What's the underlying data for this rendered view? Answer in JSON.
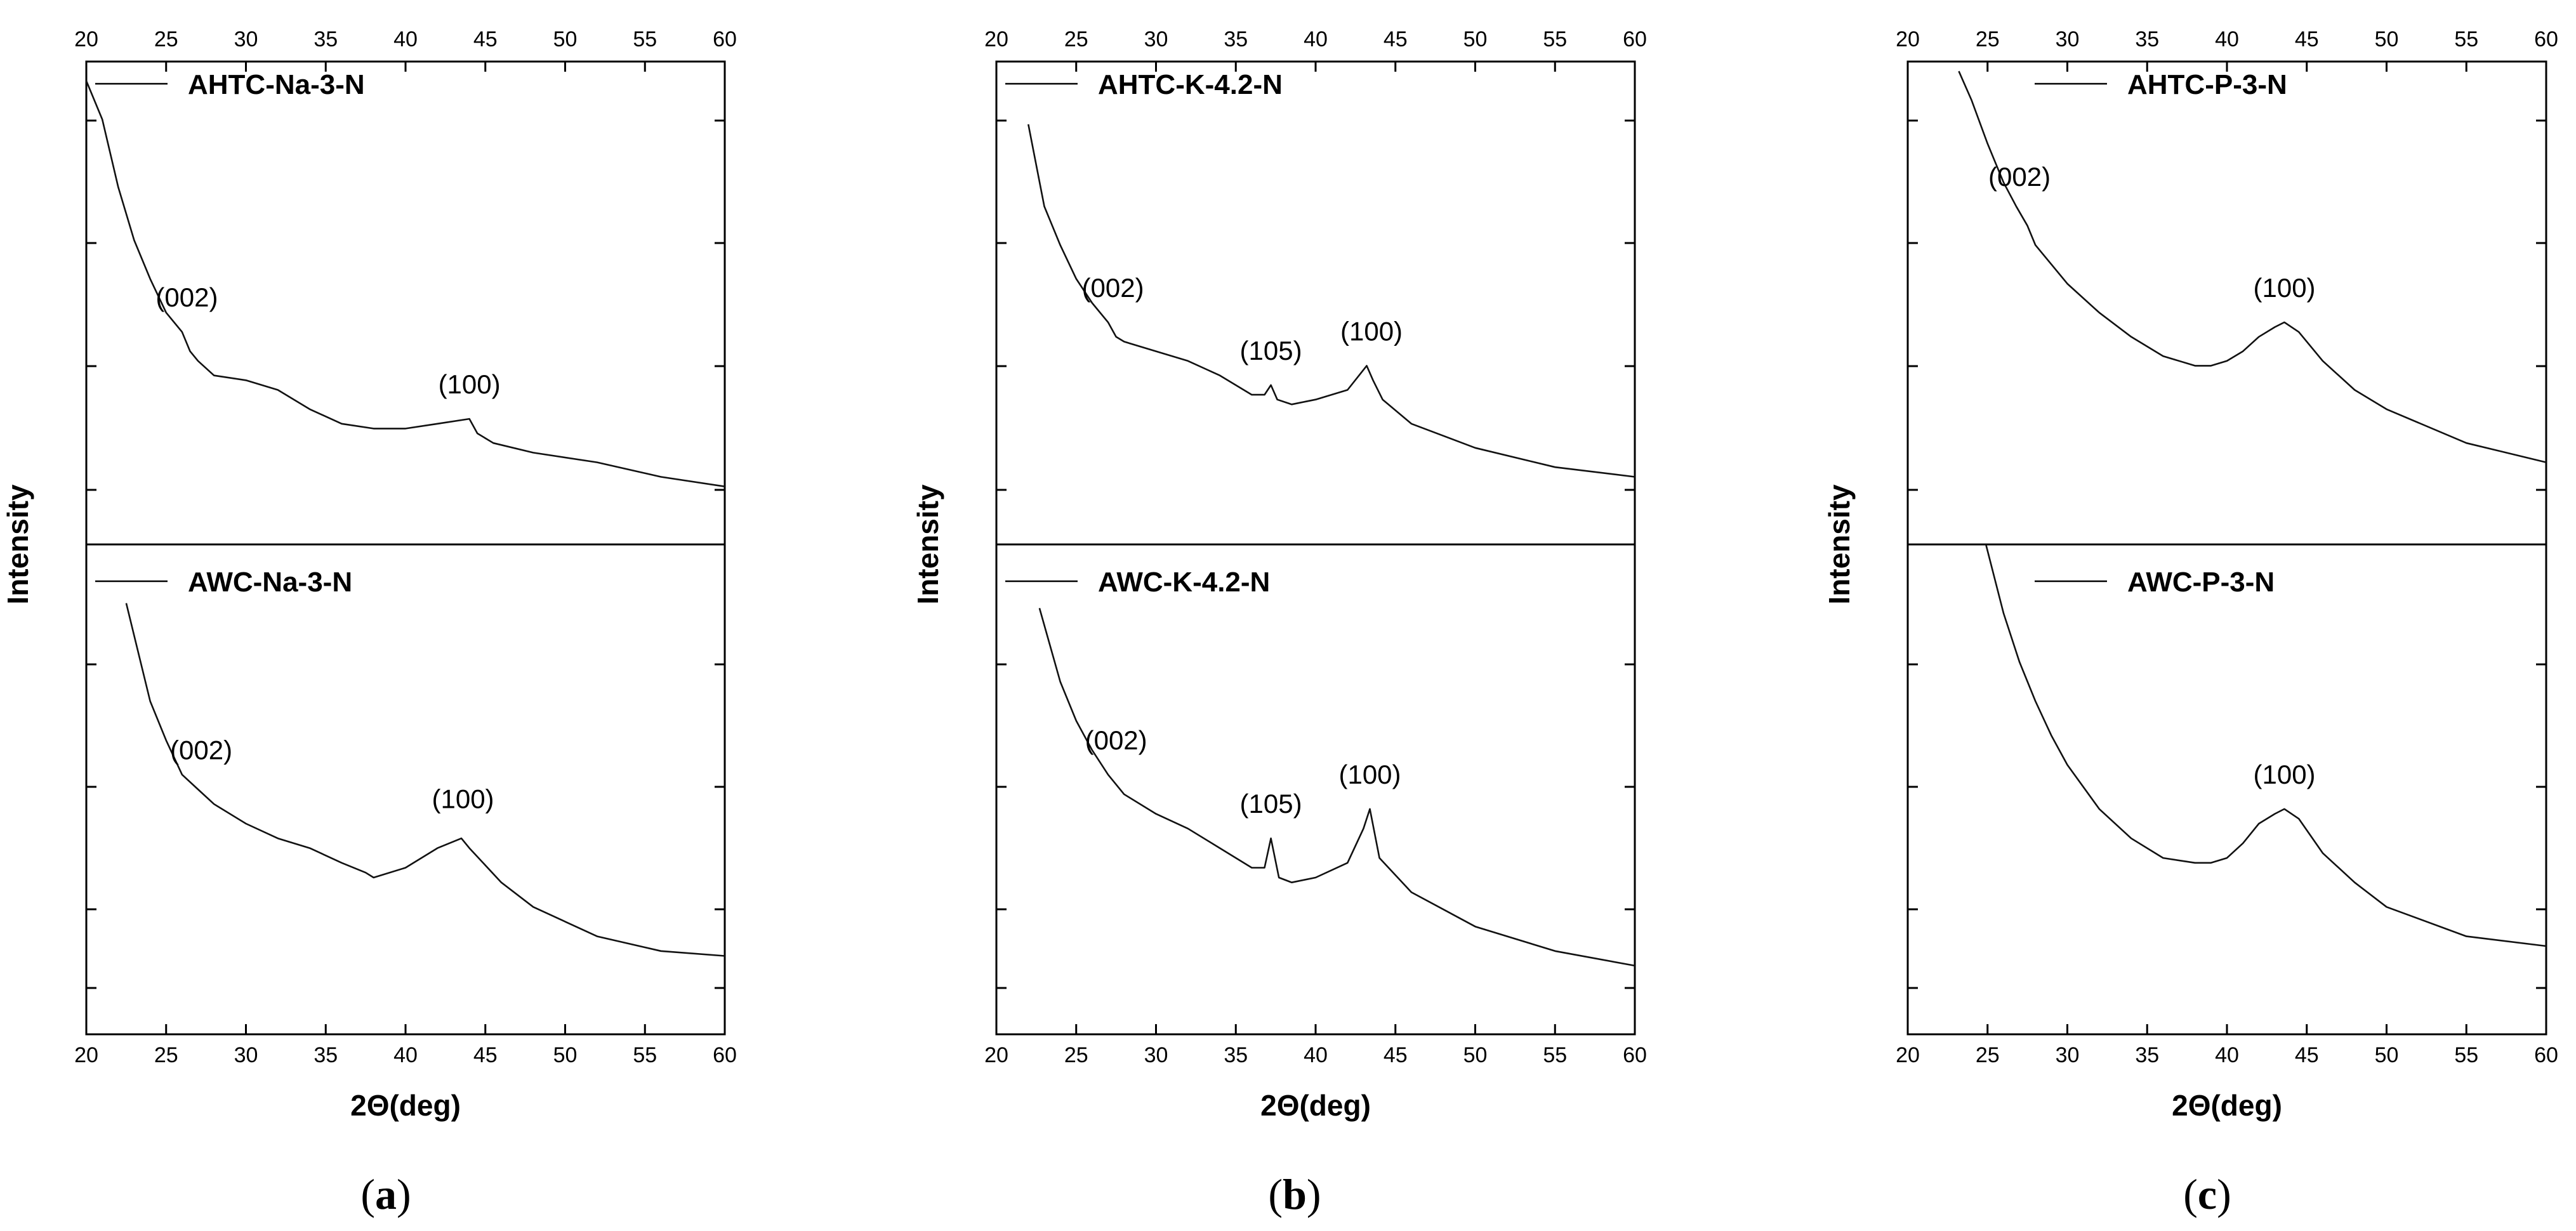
{
  "chart_data": [
    {
      "type": "line",
      "panel": "a",
      "panel_label": {
        "open": "(",
        "letter": "a",
        "close": ")"
      },
      "xlabel": "2Θ(deg)",
      "ylabel": "Intensity",
      "xlim": [
        20,
        60
      ],
      "ylim": [
        0,
        100
      ],
      "x_ticks": [
        "20",
        "25",
        "30",
        "35",
        "40",
        "45",
        "50",
        "55",
        "60"
      ],
      "grid": false,
      "subplots": [
        {
          "position": "top",
          "legend": "AHTC-Na-3-N",
          "series": {
            "name": "AHTC-Na-3-N",
            "x": [
              20.0,
              21.0,
              22.0,
              23.0,
              24.0,
              25.0,
              26.0,
              26.5,
              27.0,
              28.0,
              30.0,
              32.0,
              34.0,
              36.0,
              38.0,
              40.0,
              42.0,
              44.0,
              44.5,
              45.5,
              48.0,
              52.0,
              56.0,
              60.0
            ],
            "y": [
              96,
              88,
              74,
              63,
              55,
              48,
              44,
              40,
              38,
              35,
              34,
              32,
              28,
              25,
              24,
              24,
              25,
              26,
              23,
              21,
              19,
              17,
              14,
              12
            ]
          },
          "peaks": [
            {
              "label": "(002)",
              "x": 26.3,
              "y": 44
            },
            {
              "label": "(100)",
              "x": 44.0,
              "y": 26
            }
          ]
        },
        {
          "position": "bottom",
          "legend": "AWC-Na-3-N",
          "series": {
            "name": "AWC-Na-3-N",
            "x": [
              22.5,
              24.0,
              25.0,
              26.0,
              27.0,
              28.0,
              30.0,
              32.0,
              34.0,
              36.0,
              37.5,
              38.0,
              40.0,
              42.0,
              43.5,
              44.0,
              46.0,
              48.0,
              52.0,
              56.0,
              60.0
            ],
            "y": [
              88,
              68,
              60,
              53,
              50,
              47,
              43,
              40,
              38,
              35,
              33,
              32,
              34,
              38,
              40,
              38,
              31,
              26,
              20,
              17,
              16
            ]
          },
          "peaks": [
            {
              "label": "(002)",
              "x": 27.2,
              "y": 51
            },
            {
              "label": "(100)",
              "x": 43.6,
              "y": 41
            }
          ]
        }
      ]
    },
    {
      "type": "line",
      "panel": "b",
      "panel_label": {
        "open": "(",
        "letter": "b",
        "close": ")"
      },
      "xlabel": "2Θ(deg)",
      "ylabel": "Intensity",
      "xlim": [
        20,
        60
      ],
      "ylim": [
        0,
        100
      ],
      "x_ticks": [
        "20",
        "25",
        "30",
        "35",
        "40",
        "45",
        "50",
        "55",
        "60"
      ],
      "grid": false,
      "subplots": [
        {
          "position": "top",
          "legend": "AHTC-K-4.2-N",
          "series": {
            "name": "AHTC-K-4.2-N",
            "x": [
              22.0,
              23.0,
              24.0,
              25.0,
              26.0,
              27.0,
              27.5,
              28.0,
              30.0,
              32.0,
              34.0,
              36.0,
              36.8,
              37.2,
              37.6,
              38.5,
              40.0,
              42.0,
              43.2,
              43.6,
              44.2,
              46.0,
              50.0,
              55.0,
              60.0
            ],
            "y": [
              87,
              70,
              62,
              55,
              50,
              46,
              43,
              42,
              40,
              38,
              35,
              31,
              31,
              33,
              30,
              29,
              30,
              32,
              37,
              34,
              30,
              25,
              20,
              16,
              14
            ]
          },
          "peaks": [
            {
              "label": "(002)",
              "x": 27.3,
              "y": 46
            },
            {
              "label": "(105)",
              "x": 37.2,
              "y": 33
            },
            {
              "label": "(100)",
              "x": 43.5,
              "y": 37
            }
          ]
        },
        {
          "position": "bottom",
          "legend": "AWC-K-4.2-N",
          "series": {
            "name": "AWC-K-4.2-N",
            "x": [
              22.7,
              24.0,
              25.0,
              26.0,
              27.0,
              28.0,
              30.0,
              32.0,
              34.0,
              36.0,
              36.8,
              37.2,
              37.7,
              38.5,
              40.0,
              42.0,
              43.0,
              43.4,
              44.0,
              46.0,
              50.0,
              55.0,
              60.0
            ],
            "y": [
              87,
              72,
              64,
              58,
              53,
              49,
              45,
              42,
              38,
              34,
              34,
              40,
              32,
              31,
              32,
              35,
              42,
              46,
              36,
              29,
              22,
              17,
              14
            ]
          },
          "peaks": [
            {
              "label": "(002)",
              "x": 27.5,
              "y": 53
            },
            {
              "label": "(105)",
              "x": 37.2,
              "y": 40
            },
            {
              "label": "(100)",
              "x": 43.4,
              "y": 46
            }
          ]
        }
      ]
    },
    {
      "type": "line",
      "panel": "c",
      "panel_label": {
        "open": "(",
        "letter": "c",
        "close": ")"
      },
      "xlabel": "2Θ(deg)",
      "ylabel": "Intensity",
      "xlim": [
        20,
        60
      ],
      "ylim": [
        0,
        100
      ],
      "x_ticks": [
        "20",
        "25",
        "30",
        "35",
        "40",
        "45",
        "50",
        "55",
        "60"
      ],
      "grid": false,
      "subplots": [
        {
          "position": "top",
          "legend": "AHTC-P-3-N",
          "series": {
            "name": "AHTC-P-3-N",
            "x": [
              23.2,
              24.0,
              25.0,
              26.0,
              26.8,
              27.5,
              28.0,
              29.0,
              30.0,
              32.0,
              34.0,
              36.0,
              38.0,
              39.0,
              40.0,
              41.0,
              42.0,
              43.0,
              43.6,
              44.5,
              46.0,
              48.0,
              50.0,
              55.0,
              60.0
            ],
            "y": [
              98,
              92,
              83,
              75,
              70,
              66,
              62,
              58,
              54,
              48,
              43,
              39,
              37,
              37,
              38,
              40,
              43,
              45,
              46,
              44,
              38,
              32,
              28,
              21,
              17
            ]
          },
          "peaks": [
            {
              "label": "(002)",
              "x": 27.0,
              "y": 69
            },
            {
              "label": "(100)",
              "x": 43.6,
              "y": 46
            }
          ]
        },
        {
          "position": "bottom",
          "legend": "AWC-P-3-N",
          "series": {
            "name": "AWC-P-3-N",
            "x": [
              24.9,
              26.0,
              27.0,
              28.0,
              29.0,
              30.0,
              32.0,
              34.0,
              36.0,
              38.0,
              39.0,
              40.0,
              41.0,
              42.0,
              43.0,
              43.6,
              44.5,
              46.0,
              48.0,
              50.0,
              55.0,
              60.0
            ],
            "y": [
              100,
              86,
              76,
              68,
              61,
              55,
              46,
              40,
              36,
              35,
              35,
              36,
              39,
              43,
              45,
              46,
              44,
              37,
              31,
              26,
              20,
              18
            ]
          },
          "peaks": [
            {
              "label": "(100)",
              "x": 43.6,
              "y": 46
            }
          ]
        }
      ]
    }
  ]
}
